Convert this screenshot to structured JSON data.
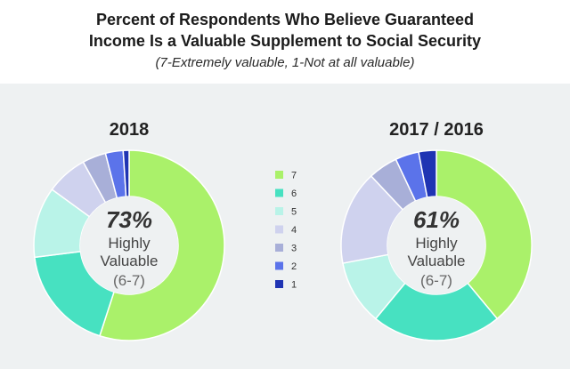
{
  "header": {
    "title_line1": "Percent of Respondents Who Believe Guaranteed",
    "title_line2": "Income Is a Valuable Supplement to Social Security",
    "subtitle": "(7-Extremely valuable, 1-Not at all valuable)"
  },
  "legend": [
    {
      "label": "7",
      "color": "#aaf16a"
    },
    {
      "label": "6",
      "color": "#47e1c1"
    },
    {
      "label": "5",
      "color": "#b9f3e8"
    },
    {
      "label": "4",
      "color": "#cfd2ee"
    },
    {
      "label": "3",
      "color": "#a8afd8"
    },
    {
      "label": "2",
      "color": "#5b73ea"
    },
    {
      "label": "1",
      "color": "#1f34b3"
    }
  ],
  "chart_data": [
    {
      "type": "pie",
      "title": "2018",
      "categories": [
        "7",
        "6",
        "5",
        "4",
        "3",
        "2",
        "1"
      ],
      "values": [
        55,
        18,
        12,
        7,
        4,
        3,
        1
      ],
      "center_percent": "73%",
      "center_label_line1": "Highly",
      "center_label_line2": "Valuable",
      "center_range": "(6-7)"
    },
    {
      "type": "pie",
      "title": "2017 / 2016",
      "categories": [
        "7",
        "6",
        "5",
        "4",
        "3",
        "2",
        "1"
      ],
      "values": [
        39,
        22,
        11,
        16,
        5,
        4,
        3
      ],
      "center_percent": "61%",
      "center_label_line1": "Highly",
      "center_label_line2": "Valuable",
      "center_range": "(6-7)"
    }
  ]
}
